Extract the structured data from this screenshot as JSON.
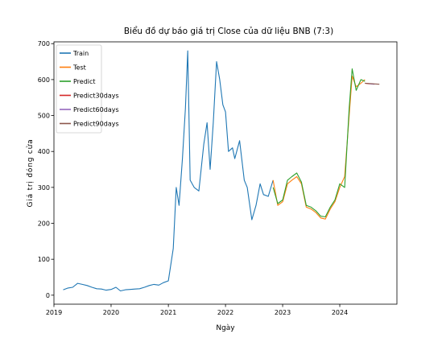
{
  "chart_data": {
    "type": "line",
    "title": "Biểu đồ dự báo giá trị Close của dữ liệu BNB (7:3)",
    "xlabel": "Ngày",
    "ylabel": "Giá trị đóng cửa",
    "xlim": [
      "2019-01-01",
      "2024-12-31"
    ],
    "ylim": [
      -25,
      705
    ],
    "xticks": [
      "2019",
      "2020",
      "2021",
      "2022",
      "2023",
      "2024"
    ],
    "yticks": [
      0,
      100,
      200,
      300,
      400,
      500,
      600,
      700
    ],
    "grid": false,
    "legend_position": "top-left",
    "series": [
      {
        "name": "Train",
        "color": "#1f77b4",
        "points": [
          [
            "2019-03-01",
            15
          ],
          [
            "2019-04-01",
            20
          ],
          [
            "2019-05-01",
            22
          ],
          [
            "2019-06-01",
            33
          ],
          [
            "2019-07-01",
            30
          ],
          [
            "2019-08-01",
            27
          ],
          [
            "2019-09-01",
            22
          ],
          [
            "2019-10-01",
            18
          ],
          [
            "2019-11-01",
            17
          ],
          [
            "2019-12-01",
            14
          ],
          [
            "2020-01-01",
            16
          ],
          [
            "2020-02-01",
            22
          ],
          [
            "2020-03-01",
            12
          ],
          [
            "2020-04-01",
            15
          ],
          [
            "2020-05-01",
            16
          ],
          [
            "2020-06-01",
            17
          ],
          [
            "2020-07-01",
            18
          ],
          [
            "2020-08-01",
            22
          ],
          [
            "2020-09-01",
            27
          ],
          [
            "2020-10-01",
            30
          ],
          [
            "2020-11-01",
            28
          ],
          [
            "2020-12-01",
            35
          ],
          [
            "2021-01-01",
            40
          ],
          [
            "2021-02-01",
            130
          ],
          [
            "2021-02-20",
            300
          ],
          [
            "2021-03-10",
            250
          ],
          [
            "2021-04-01",
            380
          ],
          [
            "2021-04-20",
            520
          ],
          [
            "2021-05-05",
            680
          ],
          [
            "2021-05-20",
            320
          ],
          [
            "2021-06-15",
            300
          ],
          [
            "2021-07-15",
            290
          ],
          [
            "2021-08-15",
            420
          ],
          [
            "2021-09-05",
            480
          ],
          [
            "2021-09-25",
            350
          ],
          [
            "2021-10-15",
            480
          ],
          [
            "2021-11-05",
            650
          ],
          [
            "2021-11-25",
            600
          ],
          [
            "2021-12-15",
            530
          ],
          [
            "2022-01-01",
            510
          ],
          [
            "2022-01-20",
            400
          ],
          [
            "2022-02-15",
            410
          ],
          [
            "2022-03-01",
            380
          ],
          [
            "2022-04-01",
            430
          ],
          [
            "2022-05-01",
            320
          ],
          [
            "2022-05-20",
            300
          ],
          [
            "2022-06-18",
            210
          ],
          [
            "2022-07-15",
            250
          ],
          [
            "2022-08-10",
            310
          ],
          [
            "2022-09-01",
            280
          ],
          [
            "2022-10-01",
            275
          ],
          [
            "2022-11-01",
            320
          ]
        ]
      },
      {
        "name": "Test",
        "color": "#ff7f0e",
        "points": [
          [
            "2022-11-01",
            320
          ],
          [
            "2022-12-01",
            250
          ],
          [
            "2023-01-01",
            260
          ],
          [
            "2023-02-01",
            310
          ],
          [
            "2023-03-01",
            320
          ],
          [
            "2023-04-01",
            330
          ],
          [
            "2023-05-01",
            310
          ],
          [
            "2023-06-01",
            245
          ],
          [
            "2023-07-01",
            240
          ],
          [
            "2023-08-01",
            230
          ],
          [
            "2023-09-01",
            215
          ],
          [
            "2023-10-01",
            212
          ],
          [
            "2023-11-01",
            240
          ],
          [
            "2023-12-01",
            260
          ],
          [
            "2024-01-01",
            300
          ],
          [
            "2024-02-01",
            330
          ],
          [
            "2024-03-01",
            500
          ],
          [
            "2024-03-20",
            610
          ],
          [
            "2024-04-15",
            580
          ],
          [
            "2024-05-15",
            590
          ],
          [
            "2024-06-10",
            600
          ]
        ]
      },
      {
        "name": "Predict",
        "color": "#2ca02c",
        "points": [
          [
            "2022-11-01",
            300
          ],
          [
            "2022-12-01",
            255
          ],
          [
            "2023-01-01",
            265
          ],
          [
            "2023-02-01",
            320
          ],
          [
            "2023-03-01",
            330
          ],
          [
            "2023-04-01",
            340
          ],
          [
            "2023-05-01",
            315
          ],
          [
            "2023-06-01",
            250
          ],
          [
            "2023-07-01",
            245
          ],
          [
            "2023-08-01",
            235
          ],
          [
            "2023-09-01",
            220
          ],
          [
            "2023-10-01",
            218
          ],
          [
            "2023-11-01",
            245
          ],
          [
            "2023-12-01",
            265
          ],
          [
            "2024-01-01",
            310
          ],
          [
            "2024-02-01",
            300
          ],
          [
            "2024-03-01",
            520
          ],
          [
            "2024-03-20",
            630
          ],
          [
            "2024-04-15",
            570
          ],
          [
            "2024-05-15",
            600
          ],
          [
            "2024-06-10",
            595
          ]
        ]
      },
      {
        "name": "Predict30days",
        "color": "#d62728",
        "points": [
          [
            "2024-06-10",
            590
          ],
          [
            "2024-07-10",
            588
          ]
        ]
      },
      {
        "name": "Predict60days",
        "color": "#9467bd",
        "points": [
          [
            "2024-07-10",
            588
          ],
          [
            "2024-08-10",
            587
          ]
        ]
      },
      {
        "name": "Predict90days",
        "color": "#8c564b",
        "points": [
          [
            "2024-06-10",
            590
          ],
          [
            "2024-09-10",
            587
          ]
        ]
      }
    ]
  }
}
